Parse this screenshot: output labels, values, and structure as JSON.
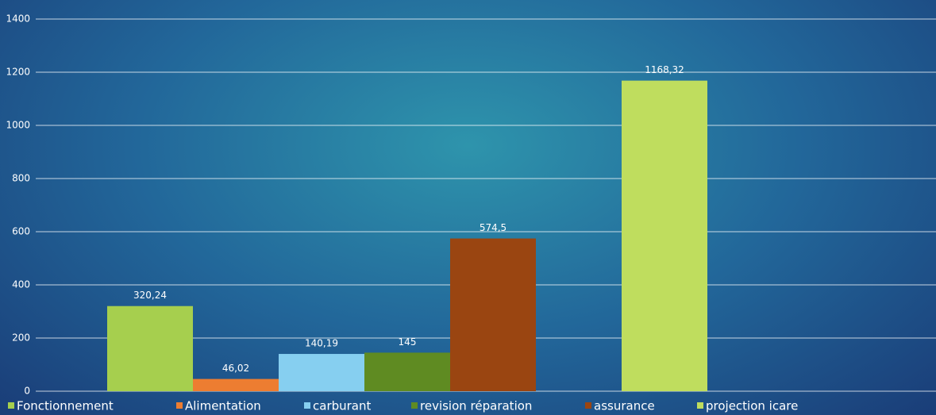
{
  "chart_data": {
    "type": "bar",
    "series": [
      {
        "name": "Fonctionnement",
        "color": "#a6cf4e",
        "values": [
          320.24
        ],
        "value_labels": [
          "320,24"
        ]
      },
      {
        "name": "Alimentation",
        "color": "#ed7d31",
        "values": [
          46.02
        ],
        "value_labels": [
          "46,02"
        ]
      },
      {
        "name": "carburant",
        "color": "#86cff0",
        "values": [
          140.19
        ],
        "value_labels": [
          "140,19"
        ]
      },
      {
        "name": "revision réparation",
        "color": "#5f8b22",
        "values": [
          145
        ],
        "value_labels": [
          "145"
        ]
      },
      {
        "name": "assurance",
        "color": "#9a4511",
        "values": [
          574.5
        ],
        "value_labels": [
          "574,5"
        ]
      },
      {
        "name": "projection icare",
        "color": "#bfdd5e",
        "values": [
          1168.32
        ],
        "value_labels": [
          "1168,32"
        ]
      }
    ],
    "ylim": [
      0,
      1400
    ],
    "yticks": [
      0,
      200,
      400,
      600,
      800,
      1000,
      1200,
      1400
    ],
    "grid": true
  }
}
